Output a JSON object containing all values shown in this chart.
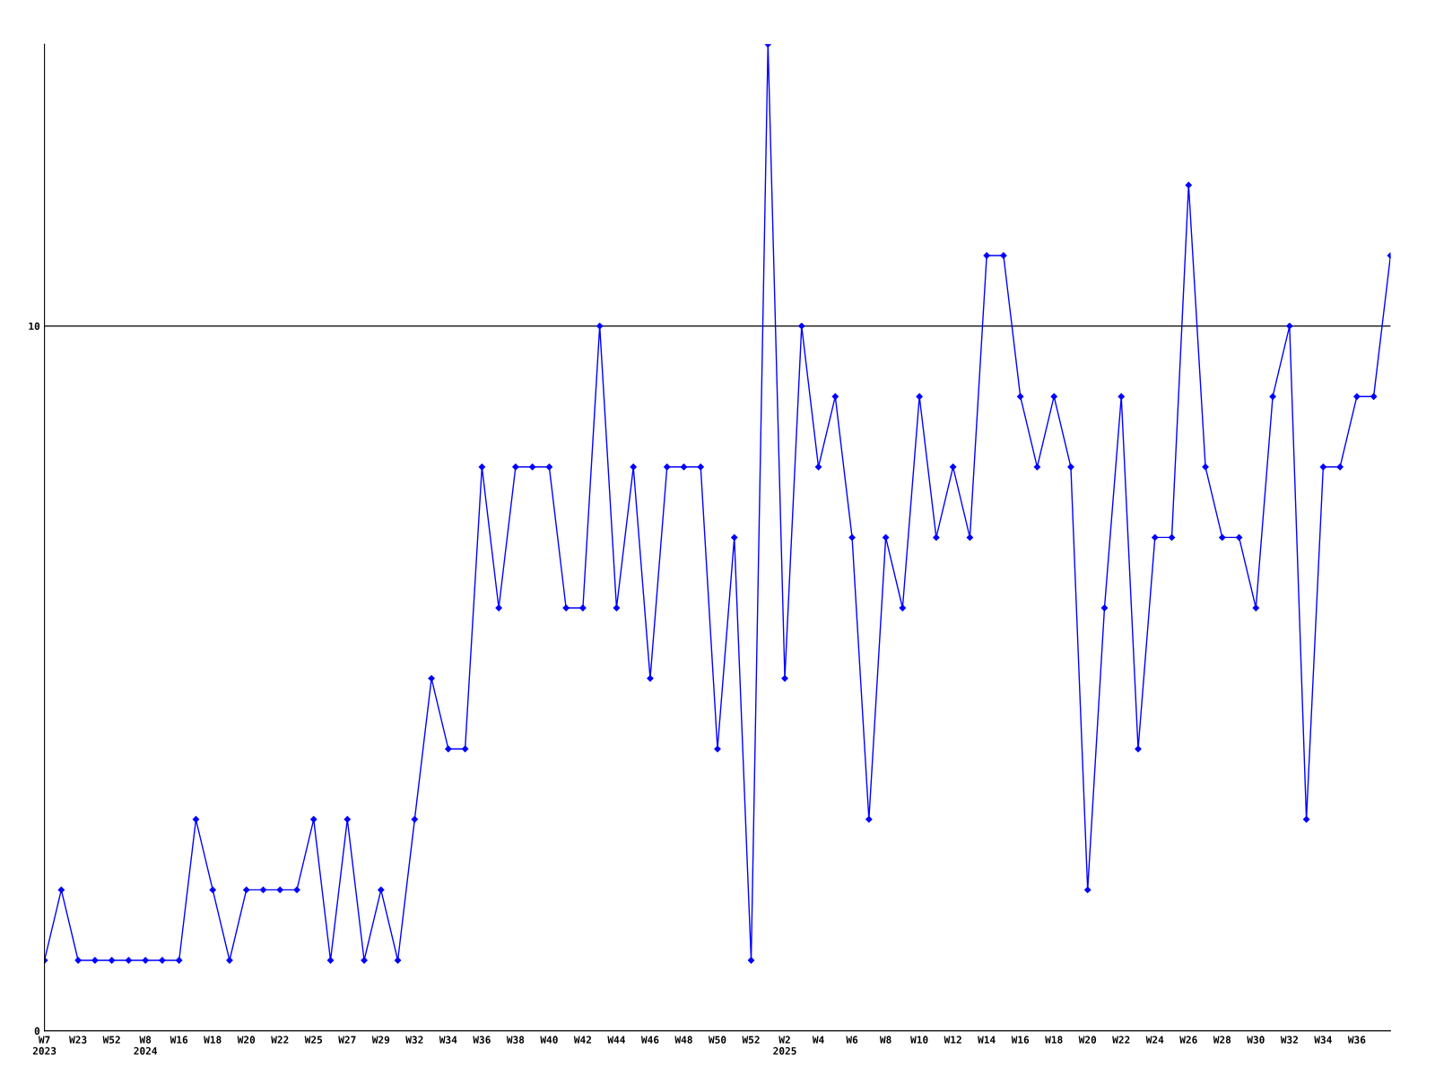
{
  "chart_data": {
    "type": "line",
    "categories": [
      "W7\n2023",
      null,
      "W23",
      null,
      "W52",
      null,
      "W8\n2024",
      null,
      "W16",
      null,
      "W18",
      null,
      "W20",
      null,
      "W22",
      null,
      "W25",
      null,
      "W27",
      null,
      "W29",
      null,
      "W32",
      null,
      "W34",
      null,
      "W36",
      null,
      "W38",
      null,
      "W40",
      null,
      "W42",
      null,
      "W44",
      null,
      "W46",
      null,
      "W48",
      null,
      "W50",
      null,
      "W52",
      null,
      "W2\n2025",
      null,
      "W4",
      null,
      "W6",
      null,
      "W8",
      null,
      "W10",
      null,
      "W12",
      null,
      "W14",
      null,
      "W16",
      null,
      "W18",
      null,
      "W20",
      null,
      "W22",
      null,
      "W24",
      null,
      "W26",
      null,
      "W28",
      null,
      "W30",
      null,
      "W32",
      null,
      "W34",
      null,
      "W36",
      null,
      null
    ],
    "series": [
      {
        "color": "#0000ff",
        "values": [
          1,
          2,
          1,
          1,
          1,
          1,
          1,
          1,
          1,
          3,
          2,
          1,
          2,
          2,
          2,
          2,
          3,
          1,
          3,
          1,
          2,
          1,
          3,
          5,
          4,
          4,
          8,
          6,
          8,
          8,
          8,
          6,
          6,
          10,
          6,
          8,
          5,
          8,
          8,
          8,
          4,
          7,
          1,
          14,
          5,
          10,
          8,
          9,
          7,
          3,
          7,
          6,
          9,
          7,
          8,
          7,
          11,
          11,
          9,
          8,
          9,
          8,
          2,
          6,
          9,
          4,
          7,
          7,
          12,
          8,
          7,
          7,
          6,
          9,
          10,
          3,
          8,
          8,
          9,
          9,
          11
        ]
      }
    ],
    "ylim": [
      0,
      14
    ],
    "yticks": [
      0,
      10
    ],
    "grid": "y",
    "marker": "diamond",
    "line_style": "solid",
    "legend": false
  }
}
